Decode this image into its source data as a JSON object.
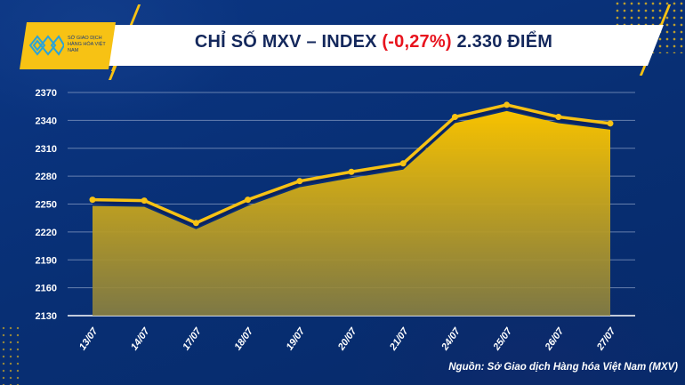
{
  "header": {
    "title_prefix": "CHỈ SỐ MXV – INDEX",
    "title_change": "(-0,27%)",
    "title_suffix": "2.330 ĐIỂM",
    "logo_text": "SỞ GIAO DỊCH HÀNG HÓA VIỆT NAM"
  },
  "source": "Nguồn: Sở Giao dịch Hàng hóa Việt Nam (MXV)",
  "colors": {
    "accent": "#f7c214",
    "background": "#0a2f78",
    "negative": "#e8141e",
    "title": "#14285c"
  },
  "chart_data": {
    "type": "area",
    "title": "CHỈ SỐ MXV – INDEX (-0,27%) 2.330 ĐIỂM",
    "xlabel": "",
    "ylabel": "",
    "categories": [
      "13/07",
      "14/07",
      "17/07",
      "18/07",
      "19/07",
      "20/07",
      "21/07",
      "24/07",
      "25/07",
      "26/07",
      "27/07"
    ],
    "series": [
      {
        "name": "MXV-Index",
        "values": [
          2248,
          2247,
          2223,
          2248,
          2268,
          2278,
          2287,
          2337,
          2350,
          2337,
          2330
        ]
      }
    ],
    "yticks": [
      2130,
      2160,
      2190,
      2220,
      2250,
      2280,
      2310,
      2340,
      2370
    ],
    "ylim": [
      2130,
      2370
    ],
    "grid": true,
    "legend": "none"
  }
}
